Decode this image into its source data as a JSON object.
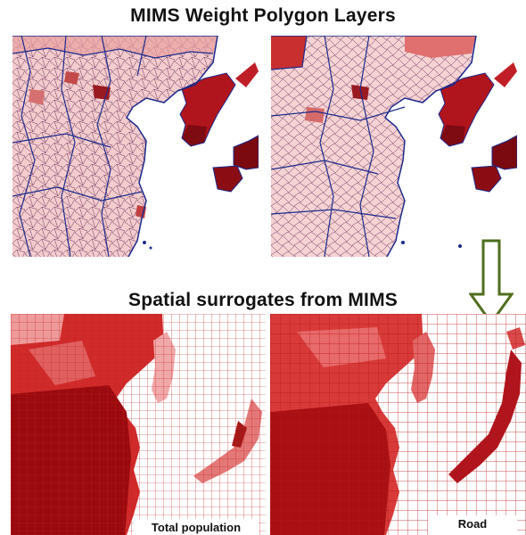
{
  "titles": {
    "top": "MIMS Weight Polygon Layers",
    "bottom": "Spatial surrogates from MIMS"
  },
  "panels": {
    "surrogate_left_label": "Total population",
    "surrogate_right_label": "Road"
  },
  "colors": {
    "sea": "#ffffff",
    "land_light": "#f7dcdc",
    "land_mid": "#e06a6a",
    "land_dark": "#8c0c14",
    "boundary": "#1c2a8c",
    "grid": "#b01818",
    "arrow_fill": "#ffffff",
    "arrow_stroke": "#4f6e1e"
  }
}
